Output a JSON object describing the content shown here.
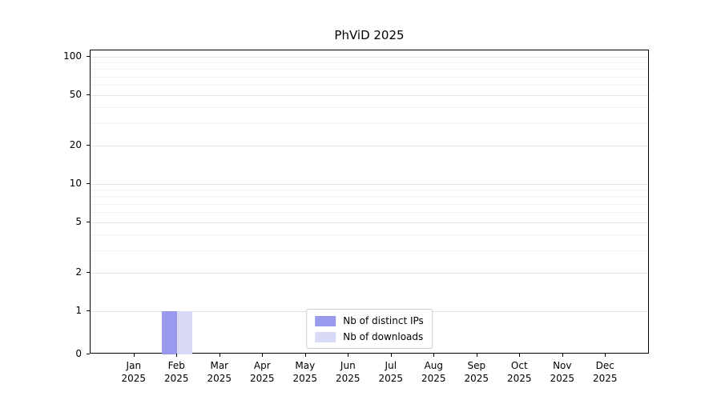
{
  "chart_data": {
    "type": "bar",
    "title": "PhViD 2025",
    "x_categories": [
      {
        "month": "Jan",
        "year": "2025"
      },
      {
        "month": "Feb",
        "year": "2025"
      },
      {
        "month": "Mar",
        "year": "2025"
      },
      {
        "month": "Apr",
        "year": "2025"
      },
      {
        "month": "May",
        "year": "2025"
      },
      {
        "month": "Jun",
        "year": "2025"
      },
      {
        "month": "Jul",
        "year": "2025"
      },
      {
        "month": "Aug",
        "year": "2025"
      },
      {
        "month": "Sep",
        "year": "2025"
      },
      {
        "month": "Oct",
        "year": "2025"
      },
      {
        "month": "Nov",
        "year": "2025"
      },
      {
        "month": "Dec",
        "year": "2025"
      }
    ],
    "series": [
      {
        "name": "Nb of distinct IPs",
        "color": "#9999ee",
        "values": [
          0,
          1,
          0,
          0,
          0,
          0,
          0,
          0,
          0,
          0,
          0,
          0
        ]
      },
      {
        "name": "Nb of downloads",
        "color": "#d9d9f8",
        "values": [
          0,
          1,
          0,
          0,
          0,
          0,
          0,
          0,
          0,
          0,
          0,
          0
        ]
      }
    ],
    "y_axis": {
      "scale": "symlog",
      "major_ticks": [
        0,
        1,
        2,
        5,
        10,
        20,
        50,
        100
      ],
      "minor_ticks": [
        3,
        4,
        6,
        7,
        8,
        9,
        30,
        40,
        60,
        70,
        80,
        90
      ],
      "min": 0,
      "max": 100
    },
    "grid": true,
    "legend_position": "lower center"
  }
}
